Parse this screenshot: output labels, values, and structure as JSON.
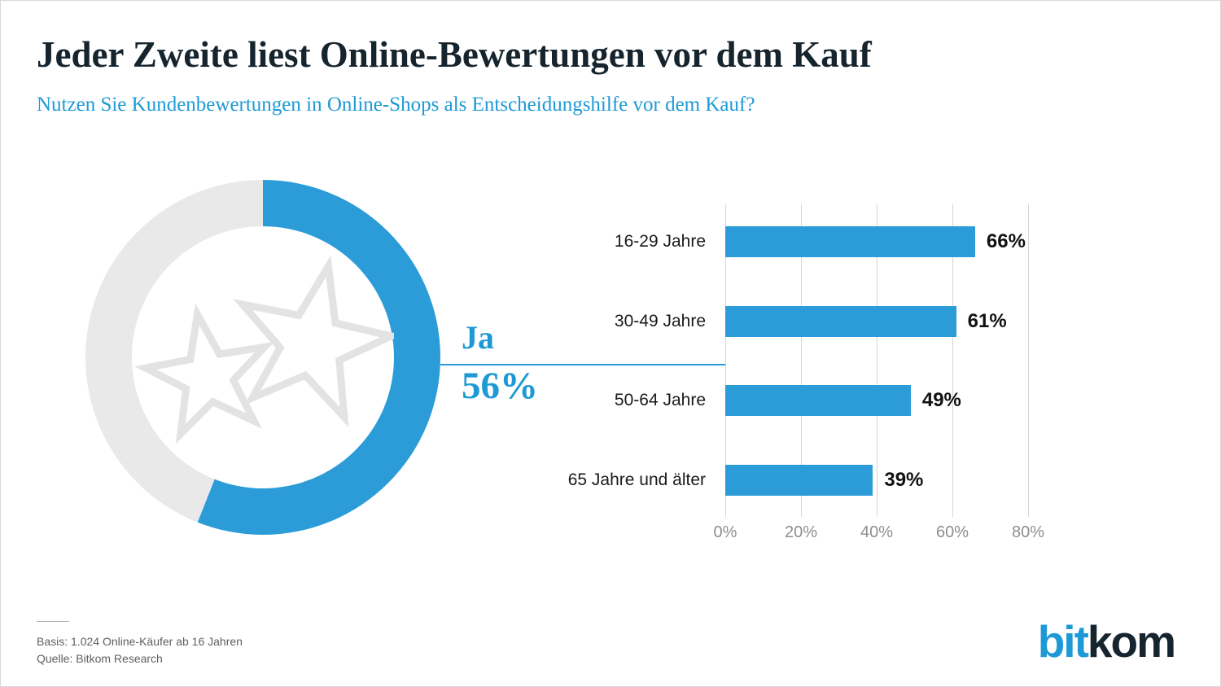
{
  "chart_data": {
    "type": "bar",
    "orientation": "horizontal",
    "title": "Jeder Zweite liest Online-Bewertungen vor dem Kauf",
    "subtitle": "Nutzen Sie Kundenbewertungen in Online-Shops als Entscheidungshilfe vor dem Kauf?",
    "donut": {
      "type": "donut",
      "label": "Ja",
      "value": 56,
      "value_label": "56%",
      "remainder": 44,
      "center_icon": "stars-icon"
    },
    "categories": [
      "16-29 Jahre",
      "30-49 Jahre",
      "50-64 Jahre",
      "65 Jahre und älter"
    ],
    "values": [
      66,
      61,
      49,
      39
    ],
    "value_labels": [
      "66%",
      "61%",
      "49%",
      "39%"
    ],
    "xlim": [
      0,
      80
    ],
    "xtick_values": [
      0,
      20,
      40,
      60,
      80
    ],
    "xtick_labels": [
      "0%",
      "20%",
      "40%",
      "60%",
      "80%"
    ],
    "grid": true,
    "legend": "none"
  },
  "footer": {
    "basis": "Basis: 1.024 Online-Käufer ab 16 Jahren",
    "source": "Quelle: Bitkom Research"
  },
  "logo": {
    "part1": "bit",
    "part2": "kom"
  },
  "colors": {
    "accent": "#2B9CD8",
    "text_blue": "#1D9AD6",
    "dark": "#16242E",
    "donut_rest": "#E9E9E9",
    "star_outline": "#E3E3E3",
    "grid": "#D6D6D6",
    "tick_text": "#8E8E8E",
    "footnote_text": "#5F5F5F"
  }
}
